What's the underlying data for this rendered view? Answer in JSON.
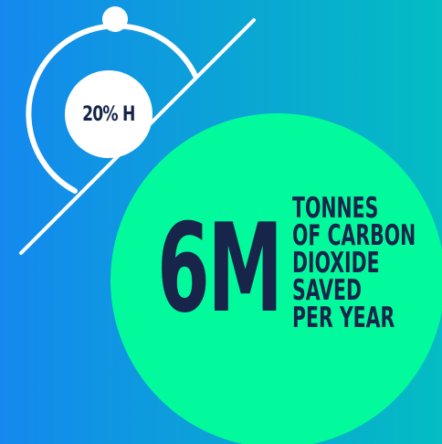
{
  "graphic": {
    "percent_label": "20% H",
    "headline": "6M",
    "caption_lines": [
      "TONNES",
      "OF CARBON",
      "DIOXIDE",
      "SAVED",
      "PER YEAR"
    ]
  },
  "colors": {
    "background_start": "#1488ef",
    "background_end": "#04bcc3",
    "accent_green": "#03fa9c",
    "text_navy": "#17254b",
    "white": "#ffffff"
  }
}
